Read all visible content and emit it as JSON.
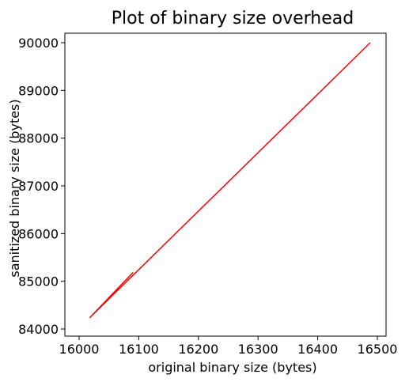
{
  "chart_data": {
    "type": "line",
    "title": "Plot of binary size overhead",
    "xlabel": "original binary size (bytes)",
    "ylabel": "sanitized binary size (bytes)",
    "xlim": [
      16000,
      16500
    ],
    "ylim": [
      84000,
      90000
    ],
    "xticks": [
      16000,
      16100,
      16200,
      16300,
      16400,
      16500
    ],
    "yticks": [
      84000,
      85000,
      86000,
      87000,
      88000,
      89000,
      90000
    ],
    "xtick_labels": [
      "16000",
      "16100",
      "16200",
      "16300",
      "16400",
      "16500"
    ],
    "ytick_labels": [
      "84000",
      "85000",
      "86000",
      "87000",
      "88000",
      "89000",
      "90000"
    ],
    "grid": false,
    "series": [
      {
        "color": "#ff0000",
        "x": [
          16018,
          16090,
          16018,
          16488
        ],
        "y": [
          84240,
          85180,
          84240,
          90000
        ]
      }
    ]
  }
}
